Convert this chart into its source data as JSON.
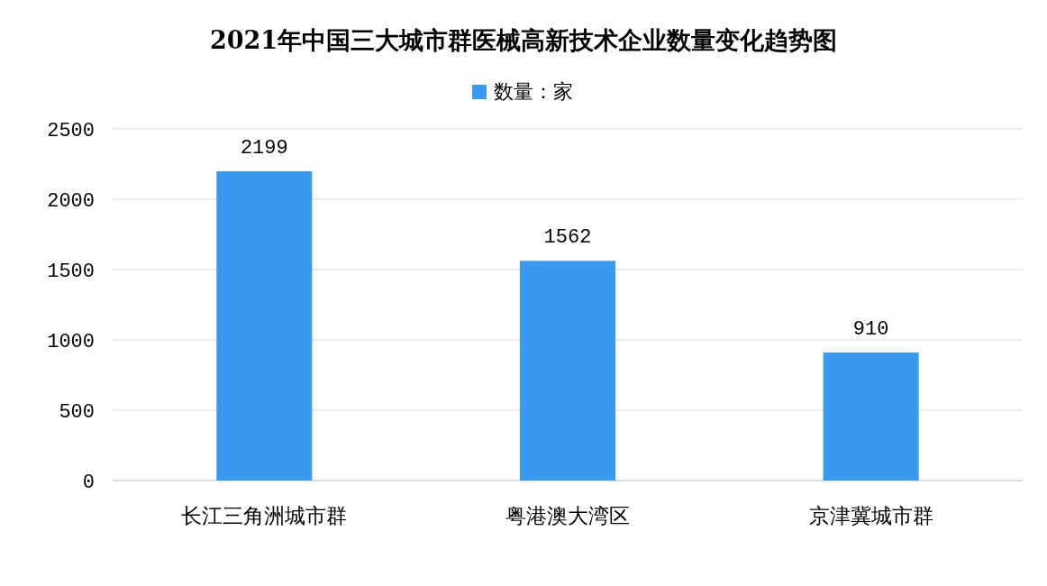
{
  "chart_data": {
    "type": "bar",
    "title": "2021年中国三大城市群医械高新技术企业数量变化趋势图",
    "categories": [
      "长江三角洲城市群",
      "粤港澳大湾区",
      "京津冀城市群"
    ],
    "series": [
      {
        "name": "数量：家",
        "color": "#3a9af0",
        "values": [
          2199,
          1562,
          910
        ]
      }
    ],
    "ylim": [
      0,
      2500
    ],
    "yticks": [
      0,
      500,
      1000,
      1500,
      2000,
      2500
    ],
    "grid": "y",
    "legend": "top",
    "data_labels": true
  }
}
